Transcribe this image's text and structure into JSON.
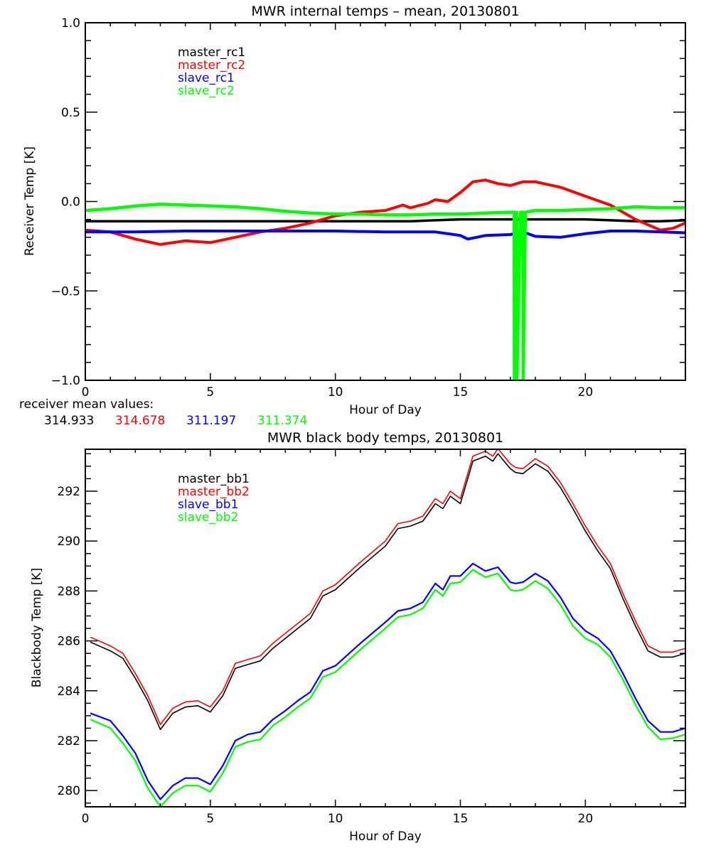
{
  "chart_data": [
    {
      "type": "line",
      "title": "MWR internal temps – mean, 20130801",
      "xlabel": "Hour of Day",
      "ylabel": "Receiver Temp [K]",
      "xlim": [
        0,
        24
      ],
      "ylim": [
        -1.0,
        1.0
      ],
      "xticks": [
        0,
        5,
        10,
        15,
        20
      ],
      "xtick_labels": [
        "0",
        "5",
        "10",
        "15",
        "20"
      ],
      "x_minor_step": 1,
      "yticks": [
        1.0,
        0.5,
        0.0,
        -0.5,
        -1.0
      ],
      "ytick_labels": [
        "1.0",
        "0.5",
        "0.0",
        "−0.5",
        "−1.0"
      ],
      "y_minor_step": 0.1,
      "grid": false,
      "legend_position": "top-left",
      "series": [
        {
          "name": "master_rc1",
          "color": "#000000",
          "x": [
            0,
            1,
            2,
            3,
            4,
            5,
            6,
            7,
            8,
            9,
            10,
            11,
            12,
            13,
            14,
            15,
            16,
            17,
            18,
            19,
            20,
            21,
            22,
            23,
            24
          ],
          "y": [
            -0.11,
            -0.11,
            -0.11,
            -0.11,
            -0.11,
            -0.11,
            -0.11,
            -0.11,
            -0.11,
            -0.11,
            -0.11,
            -0.11,
            -0.11,
            -0.11,
            -0.105,
            -0.1,
            -0.1,
            -0.1,
            -0.1,
            -0.1,
            -0.1,
            -0.105,
            -0.11,
            -0.11,
            -0.105
          ]
        },
        {
          "name": "master_rc2",
          "color": "#ff0000",
          "x": [
            0,
            1,
            2,
            3,
            4,
            5,
            6,
            7,
            8,
            9,
            10,
            11,
            12,
            12.7,
            13,
            13.7,
            14,
            14.5,
            15,
            15.5,
            16,
            16.5,
            17,
            17.5,
            18,
            19,
            20,
            21,
            22,
            23,
            23.5,
            24
          ],
          "y": [
            -0.16,
            -0.17,
            -0.21,
            -0.24,
            -0.22,
            -0.23,
            -0.2,
            -0.17,
            -0.15,
            -0.12,
            -0.08,
            -0.06,
            -0.05,
            -0.02,
            -0.035,
            -0.01,
            0.01,
            0.0,
            0.05,
            0.11,
            0.12,
            0.1,
            0.09,
            0.11,
            0.11,
            0.08,
            0.03,
            -0.02,
            -0.1,
            -0.16,
            -0.15,
            -0.12
          ]
        },
        {
          "name": "slave_rc1",
          "color": "#0000ff",
          "x": [
            0,
            2,
            4,
            6,
            8,
            10,
            12,
            13,
            14,
            15,
            15.3,
            16,
            17,
            17.5,
            18,
            19,
            20,
            21,
            22,
            23,
            24
          ],
          "y": [
            -0.17,
            -0.17,
            -0.165,
            -0.165,
            -0.165,
            -0.165,
            -0.17,
            -0.17,
            -0.17,
            -0.19,
            -0.21,
            -0.19,
            -0.185,
            -0.17,
            -0.195,
            -0.2,
            -0.18,
            -0.165,
            -0.165,
            -0.17,
            -0.175
          ]
        },
        {
          "name": "slave_rc2",
          "color": "#00ff00",
          "x": [
            0,
            1,
            2,
            3,
            4,
            5,
            6,
            7,
            8,
            9,
            10,
            11,
            12,
            13,
            14,
            15,
            16,
            17,
            17.15,
            17.16,
            17.2,
            17.25,
            17.26,
            17.4,
            17.5,
            17.51,
            17.6,
            18,
            19,
            20,
            21,
            22,
            23,
            24
          ],
          "y": [
            -0.05,
            -0.04,
            -0.025,
            -0.015,
            -0.02,
            -0.025,
            -0.03,
            -0.04,
            -0.055,
            -0.065,
            -0.07,
            -0.07,
            -0.075,
            -0.075,
            -0.07,
            -0.07,
            -0.065,
            -0.06,
            -0.06,
            -1.0,
            -1.0,
            -0.06,
            -1.0,
            -0.06,
            -0.06,
            -1.0,
            -0.06,
            -0.05,
            -0.05,
            -0.045,
            -0.04,
            -0.03,
            -0.035,
            -0.035
          ]
        }
      ],
      "annotation": {
        "label": "receiver mean values:",
        "values": [
          {
            "text": "314.933",
            "color": "#000000"
          },
          {
            "text": "314.678",
            "color": "#ff0000"
          },
          {
            "text": "311.197",
            "color": "#0000ff"
          },
          {
            "text": "311.374",
            "color": "#00ff00"
          }
        ]
      }
    },
    {
      "type": "line",
      "title": "MWR black body temps, 20130801",
      "xlabel": "Hour of Day",
      "ylabel": "Blackbody Temp [K]",
      "xlim": [
        0,
        24
      ],
      "ylim": [
        279.35,
        293.68
      ],
      "xticks": [
        0,
        5,
        10,
        15,
        20
      ],
      "xtick_labels": [
        "0",
        "5",
        "10",
        "15",
        "20"
      ],
      "x_minor_step": 1,
      "yticks": [
        280,
        282,
        284,
        286,
        288,
        290,
        292
      ],
      "ytick_labels": [
        "280",
        "282",
        "284",
        "286",
        "288",
        "290",
        "292"
      ],
      "y_minor_step": 0.5,
      "grid": false,
      "legend_position": "top-left",
      "series": [
        {
          "name": "master_bb1",
          "color": "#000000",
          "x": [
            0.2,
            1,
            1.5,
            2,
            2.5,
            3,
            3.5,
            4,
            4.5,
            5,
            5.5,
            6,
            6.5,
            7,
            7.5,
            8,
            8.5,
            9,
            9.5,
            10,
            11,
            12,
            12.5,
            13,
            13.5,
            14,
            14.3,
            14.6,
            15,
            15.5,
            16,
            16.3,
            16.5,
            17,
            17.2,
            17.5,
            18,
            18.5,
            19,
            19.5,
            20,
            20.5,
            21,
            21.5,
            22,
            22.5,
            23,
            23.5,
            24
          ],
          "y": [
            285.95,
            285.6,
            285.3,
            284.5,
            283.6,
            282.45,
            283.1,
            283.35,
            283.4,
            283.15,
            283.8,
            284.9,
            285.05,
            285.2,
            285.7,
            286.1,
            286.5,
            286.9,
            287.8,
            288.05,
            288.95,
            289.8,
            290.5,
            290.6,
            290.8,
            291.5,
            291.3,
            291.8,
            291.5,
            293.2,
            293.4,
            293.2,
            293.5,
            292.9,
            292.75,
            292.7,
            293.1,
            292.8,
            292.15,
            291.3,
            290.4,
            289.6,
            288.9,
            287.7,
            286.6,
            285.6,
            285.35,
            285.35,
            285.5
          ]
        },
        {
          "name": "master_bb2",
          "color": "#ff0000",
          "x": [
            0.2,
            1,
            1.5,
            2,
            2.5,
            3,
            3.5,
            4,
            4.5,
            5,
            5.5,
            6,
            6.5,
            7,
            7.5,
            8,
            8.5,
            9,
            9.5,
            10,
            11,
            12,
            12.5,
            13,
            13.5,
            14,
            14.3,
            14.6,
            15,
            15.5,
            16,
            16.3,
            16.5,
            17,
            17.2,
            17.5,
            18,
            18.5,
            19,
            19.5,
            20,
            20.5,
            21,
            21.5,
            22,
            22.5,
            23,
            23.5,
            24
          ],
          "y": [
            286.15,
            285.8,
            285.5,
            284.7,
            283.8,
            282.65,
            283.3,
            283.55,
            283.6,
            283.35,
            284.0,
            285.1,
            285.25,
            285.4,
            285.9,
            286.3,
            286.7,
            287.1,
            288.0,
            288.25,
            289.15,
            290.0,
            290.7,
            290.8,
            291.0,
            291.7,
            291.5,
            292.0,
            291.7,
            293.4,
            293.6,
            293.4,
            293.7,
            293.1,
            292.95,
            292.9,
            293.3,
            293.0,
            292.35,
            291.5,
            290.6,
            289.8,
            289.1,
            287.9,
            286.8,
            285.8,
            285.55,
            285.55,
            285.7
          ]
        },
        {
          "name": "slave_bb1",
          "color": "#0000ff",
          "x": [
            0.2,
            1,
            1.5,
            2,
            2.5,
            3,
            3.5,
            4,
            4.5,
            5,
            5.5,
            6,
            6.5,
            7,
            7.5,
            8,
            8.5,
            9,
            9.5,
            10,
            11,
            12,
            12.5,
            13,
            13.5,
            14,
            14.3,
            14.6,
            15,
            15.5,
            16,
            16.5,
            17,
            17.2,
            17.5,
            18,
            18.5,
            19,
            19.5,
            20,
            20.5,
            21,
            21.5,
            22,
            22.5,
            23,
            23.5,
            24
          ],
          "y": [
            283.1,
            282.8,
            282.2,
            281.5,
            280.4,
            279.65,
            280.2,
            280.5,
            280.5,
            280.25,
            281.0,
            282.0,
            282.25,
            282.35,
            282.85,
            283.2,
            283.6,
            283.95,
            284.8,
            285.0,
            285.9,
            286.75,
            287.2,
            287.3,
            287.55,
            288.3,
            288.05,
            288.6,
            288.6,
            289.1,
            288.8,
            288.95,
            288.35,
            288.3,
            288.35,
            288.7,
            288.4,
            287.75,
            286.9,
            286.4,
            286.1,
            285.6,
            284.7,
            283.7,
            282.8,
            282.35,
            282.35,
            282.5
          ]
        },
        {
          "name": "slave_bb2",
          "color": "#00ff00",
          "x": [
            0.2,
            1,
            1.5,
            2,
            2.5,
            3,
            3.5,
            4,
            4.5,
            5,
            5.5,
            6,
            6.5,
            7,
            7.5,
            8,
            8.5,
            9,
            9.5,
            10,
            11,
            12,
            12.5,
            13,
            13.5,
            14,
            14.3,
            14.6,
            15,
            15.5,
            16,
            16.5,
            17,
            17.2,
            17.5,
            18,
            18.5,
            19,
            19.5,
            20,
            20.5,
            21,
            21.5,
            22,
            22.5,
            23,
            23.5,
            24
          ],
          "y": [
            282.85,
            282.5,
            281.9,
            281.2,
            280.1,
            279.35,
            279.9,
            280.2,
            280.2,
            279.95,
            280.7,
            281.75,
            281.95,
            282.05,
            282.6,
            282.95,
            283.35,
            283.7,
            284.55,
            284.75,
            285.65,
            286.5,
            286.95,
            287.05,
            287.3,
            288.05,
            287.8,
            288.3,
            288.35,
            288.85,
            288.55,
            288.7,
            288.05,
            288.0,
            288.05,
            288.4,
            288.1,
            287.45,
            286.6,
            286.1,
            285.85,
            285.35,
            284.45,
            283.45,
            282.55,
            282.05,
            282.1,
            282.25
          ]
        }
      ]
    }
  ]
}
